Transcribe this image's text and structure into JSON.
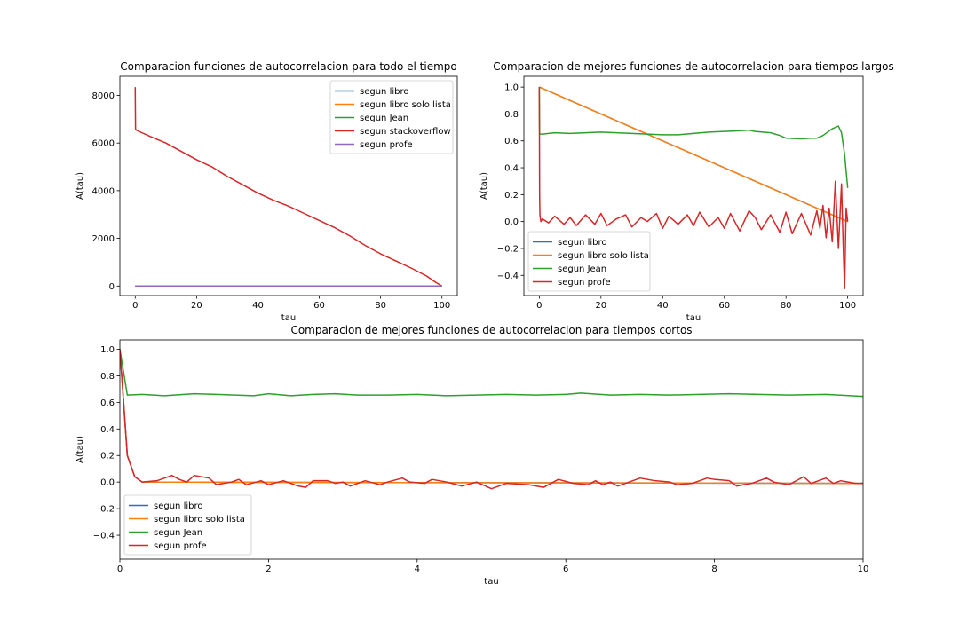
{
  "chart_data": [
    {
      "type": "line",
      "title": "Comparacion funciones de autocorrelacion para todo el tiempo",
      "xlabel": "tau",
      "ylabel": "A(tau)",
      "xlim": [
        -5,
        105
      ],
      "ylim": [
        -400,
        8800
      ],
      "xticks": [
        0,
        20,
        40,
        60,
        80,
        100
      ],
      "yticks": [
        0,
        2000,
        4000,
        6000,
        8000
      ],
      "grid": false,
      "legend_position": "top-right",
      "series": [
        {
          "name": "segun libro",
          "color": "#1f77b4",
          "x": [
            0,
            100
          ],
          "y": [
            0,
            0
          ]
        },
        {
          "name": "segun libro solo lista",
          "color": "#ff7f0e",
          "x": [
            0,
            100
          ],
          "y": [
            0,
            0
          ]
        },
        {
          "name": "segun Jean",
          "color": "#2ca02c",
          "x": [
            0,
            100
          ],
          "y": [
            0,
            0
          ]
        },
        {
          "name": "segun stackoverflow",
          "color": "#d62728",
          "x": [
            0,
            0.1,
            0.3,
            1,
            5,
            10,
            15,
            20,
            25,
            30,
            35,
            40,
            45,
            50,
            55,
            60,
            65,
            70,
            75,
            80,
            85,
            90,
            95,
            98,
            100
          ],
          "y": [
            8350,
            6600,
            6550,
            6500,
            6270,
            6000,
            5650,
            5300,
            5000,
            4600,
            4250,
            3900,
            3600,
            3350,
            3050,
            2750,
            2450,
            2100,
            1700,
            1350,
            1050,
            750,
            420,
            150,
            0
          ]
        },
        {
          "name": "segun profe",
          "color": "#9467bd",
          "x": [
            0,
            100
          ],
          "y": [
            0,
            0
          ]
        }
      ]
    },
    {
      "type": "line",
      "title": "Comparacion de mejores funciones de autocorrelacion para tiempos largos",
      "xlabel": "tau",
      "ylabel": "A(tau)",
      "xlim": [
        -5,
        105
      ],
      "ylim": [
        -0.55,
        1.08
      ],
      "xticks": [
        0,
        20,
        40,
        60,
        80,
        100
      ],
      "yticks": [
        -0.4,
        -0.2,
        0.0,
        0.2,
        0.4,
        0.6,
        0.8,
        1.0
      ],
      "grid": false,
      "legend_position": "bottom-left",
      "series": [
        {
          "name": "segun libro",
          "color": "#1f77b4",
          "x": [
            0,
            100
          ],
          "y": [
            1.0,
            0.0
          ]
        },
        {
          "name": "segun libro solo lista",
          "color": "#ff7f0e",
          "x": [
            0,
            100
          ],
          "y": [
            1.0,
            0.0
          ]
        },
        {
          "name": "segun Jean",
          "color": "#2ca02c",
          "x": [
            0,
            0.1,
            1,
            5,
            10,
            15,
            20,
            25,
            30,
            35,
            40,
            45,
            50,
            55,
            60,
            65,
            68,
            70,
            75,
            78,
            80,
            85,
            88,
            90,
            92,
            95,
            97,
            98,
            99,
            100
          ],
          "y": [
            1.0,
            0.65,
            0.65,
            0.66,
            0.655,
            0.66,
            0.665,
            0.66,
            0.655,
            0.65,
            0.645,
            0.645,
            0.655,
            0.665,
            0.67,
            0.675,
            0.68,
            0.67,
            0.66,
            0.64,
            0.62,
            0.615,
            0.62,
            0.62,
            0.64,
            0.69,
            0.71,
            0.66,
            0.5,
            0.25
          ]
        },
        {
          "name": "segun profe",
          "color": "#d62728",
          "x": [
            0,
            0.1,
            0.2,
            0.5,
            1,
            3,
            5,
            8,
            10,
            12,
            15,
            18,
            20,
            22,
            25,
            28,
            30,
            33,
            35,
            38,
            40,
            42,
            45,
            48,
            50,
            52,
            55,
            58,
            60,
            62,
            65,
            68,
            70,
            72,
            75,
            78,
            80,
            82,
            85,
            88,
            90,
            91,
            92,
            93,
            94,
            95,
            96,
            97,
            98,
            98.5,
            99,
            99.5,
            100
          ],
          "y": [
            1.0,
            0.2,
            0.05,
            0.0,
            0.02,
            -0.01,
            0.04,
            -0.02,
            0.03,
            -0.03,
            0.05,
            -0.02,
            0.06,
            -0.03,
            0.02,
            0.05,
            -0.04,
            0.03,
            0.0,
            0.06,
            -0.05,
            0.04,
            -0.02,
            0.05,
            -0.03,
            0.07,
            -0.04,
            0.03,
            -0.05,
            0.06,
            -0.07,
            0.08,
            0.03,
            -0.06,
            0.05,
            -0.08,
            0.07,
            -0.09,
            0.06,
            -0.1,
            0.08,
            -0.05,
            0.12,
            -0.12,
            0.1,
            -0.15,
            0.3,
            -0.2,
            0.28,
            -0.15,
            -0.5,
            0.1,
            0.0
          ]
        }
      ]
    },
    {
      "type": "line",
      "title": "Comparacion de mejores funciones de autocorrelacion para tiempos cortos",
      "xlabel": "tau",
      "ylabel": "A(tau)",
      "xlim": [
        0,
        10
      ],
      "ylim": [
        -0.58,
        1.07
      ],
      "xticks": [
        0,
        2,
        4,
        6,
        8,
        10
      ],
      "yticks": [
        -0.4,
        -0.2,
        0.0,
        0.2,
        0.4,
        0.6,
        0.8,
        1.0
      ],
      "grid": false,
      "legend_position": "bottom-left",
      "series": [
        {
          "name": "segun libro",
          "color": "#1f77b4",
          "x": [
            0,
            0.1,
            0.2,
            0.3,
            10
          ],
          "y": [
            1.0,
            0.2,
            0.04,
            0.0,
            -0.01
          ]
        },
        {
          "name": "segun libro solo lista",
          "color": "#ff7f0e",
          "x": [
            0,
            0.1,
            0.2,
            0.3,
            10
          ],
          "y": [
            1.0,
            0.2,
            0.04,
            0.0,
            -0.01
          ]
        },
        {
          "name": "segun Jean",
          "color": "#2ca02c",
          "x": [
            0,
            0.1,
            0.3,
            0.6,
            1.0,
            1.3,
            1.8,
            2.0,
            2.3,
            2.6,
            2.9,
            3.2,
            3.6,
            4.0,
            4.4,
            4.8,
            5.2,
            5.6,
            6.0,
            6.2,
            6.6,
            7.0,
            7.4,
            7.8,
            8.2,
            8.6,
            9.0,
            9.5,
            10.0
          ],
          "y": [
            1.0,
            0.655,
            0.66,
            0.65,
            0.665,
            0.66,
            0.65,
            0.665,
            0.65,
            0.66,
            0.665,
            0.655,
            0.655,
            0.66,
            0.65,
            0.655,
            0.66,
            0.655,
            0.66,
            0.67,
            0.655,
            0.66,
            0.655,
            0.66,
            0.665,
            0.66,
            0.655,
            0.66,
            0.645
          ]
        },
        {
          "name": "segun profe",
          "color": "#d62728",
          "x": [
            0,
            0.1,
            0.2,
            0.3,
            0.5,
            0.7,
            0.8,
            0.9,
            1.0,
            1.2,
            1.3,
            1.5,
            1.6,
            1.7,
            1.9,
            2.0,
            2.2,
            2.4,
            2.5,
            2.6,
            2.8,
            2.9,
            3.0,
            3.1,
            3.3,
            3.5,
            3.6,
            3.8,
            3.9,
            4.1,
            4.2,
            4.4,
            4.6,
            4.8,
            5.0,
            5.2,
            5.5,
            5.7,
            5.9,
            6.1,
            6.3,
            6.4,
            6.5,
            6.6,
            6.7,
            6.9,
            7.0,
            7.2,
            7.4,
            7.5,
            7.7,
            7.9,
            8.0,
            8.2,
            8.3,
            8.5,
            8.7,
            8.8,
            9.0,
            9.2,
            9.3,
            9.5,
            9.6,
            9.7,
            9.9,
            10.0
          ],
          "y": [
            1.0,
            0.2,
            0.04,
            0.0,
            0.01,
            0.05,
            0.02,
            0.0,
            0.05,
            0.03,
            -0.02,
            0.0,
            0.02,
            -0.02,
            0.01,
            -0.02,
            0.01,
            -0.03,
            -0.04,
            0.01,
            0.01,
            -0.01,
            0.0,
            -0.03,
            0.01,
            -0.02,
            0.0,
            0.03,
            0.0,
            -0.01,
            0.02,
            0.0,
            -0.03,
            0.0,
            -0.05,
            -0.01,
            -0.02,
            -0.04,
            0.02,
            -0.01,
            -0.02,
            0.01,
            -0.02,
            0.0,
            -0.03,
            0.01,
            0.03,
            0.01,
            0.0,
            -0.02,
            -0.01,
            0.03,
            0.02,
            0.01,
            -0.03,
            -0.01,
            0.03,
            0.0,
            -0.02,
            0.04,
            -0.01,
            0.03,
            -0.01,
            0.01,
            -0.01,
            -0.01
          ]
        }
      ]
    }
  ]
}
